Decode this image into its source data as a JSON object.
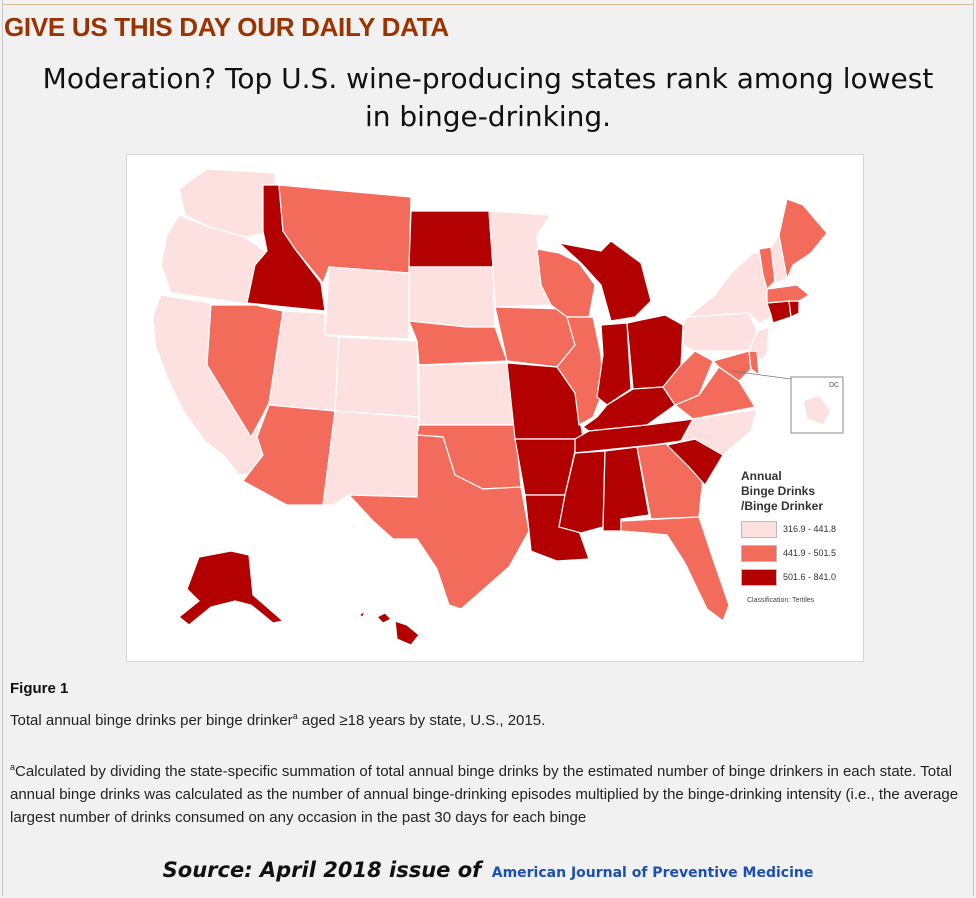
{
  "header": {
    "title": "GIVE US THIS DAY OUR DAILY DATA"
  },
  "headline": {
    "line1": "Moderation? Top U.S. wine-producing states rank among lowest",
    "line2": "in binge-drinking."
  },
  "map": {
    "legend": {
      "title_lines": [
        "Annual",
        "Binge Drinks",
        "/Binge Drinker"
      ],
      "classes": [
        {
          "label": "316.9 - 441.8",
          "color": "#fde1e1"
        },
        {
          "label": "441.9 - 501.5",
          "color": "#f26b5b"
        },
        {
          "label": "501.6 - 841.0",
          "color": "#b30000"
        }
      ],
      "note": "Classification: Tertiles"
    },
    "inset_label": "DC",
    "colors": {
      "low": "#fde1e1",
      "mid": "#f26b5b",
      "high": "#b30000",
      "border": "#ffffff"
    },
    "states": [
      {
        "name": "Washington",
        "tier": "low"
      },
      {
        "name": "Oregon",
        "tier": "low"
      },
      {
        "name": "California",
        "tier": "low"
      },
      {
        "name": "Idaho",
        "tier": "high"
      },
      {
        "name": "Nevada",
        "tier": "mid"
      },
      {
        "name": "Montana",
        "tier": "mid"
      },
      {
        "name": "Wyoming",
        "tier": "low"
      },
      {
        "name": "Utah",
        "tier": "low"
      },
      {
        "name": "Arizona",
        "tier": "mid"
      },
      {
        "name": "Colorado",
        "tier": "low"
      },
      {
        "name": "New Mexico",
        "tier": "low"
      },
      {
        "name": "North Dakota",
        "tier": "high"
      },
      {
        "name": "South Dakota",
        "tier": "low"
      },
      {
        "name": "Nebraska",
        "tier": "mid"
      },
      {
        "name": "Kansas",
        "tier": "low"
      },
      {
        "name": "Oklahoma",
        "tier": "mid"
      },
      {
        "name": "Texas",
        "tier": "mid"
      },
      {
        "name": "Minnesota",
        "tier": "low"
      },
      {
        "name": "Iowa",
        "tier": "mid"
      },
      {
        "name": "Missouri",
        "tier": "high"
      },
      {
        "name": "Arkansas",
        "tier": "high"
      },
      {
        "name": "Louisiana",
        "tier": "high"
      },
      {
        "name": "Wisconsin",
        "tier": "mid"
      },
      {
        "name": "Illinois",
        "tier": "mid"
      },
      {
        "name": "Michigan",
        "tier": "high"
      },
      {
        "name": "Indiana",
        "tier": "high"
      },
      {
        "name": "Ohio",
        "tier": "high"
      },
      {
        "name": "Kentucky",
        "tier": "high"
      },
      {
        "name": "Tennessee",
        "tier": "high"
      },
      {
        "name": "Mississippi",
        "tier": "high"
      },
      {
        "name": "Alabama",
        "tier": "high"
      },
      {
        "name": "Georgia",
        "tier": "mid"
      },
      {
        "name": "Florida",
        "tier": "mid"
      },
      {
        "name": "South Carolina",
        "tier": "high"
      },
      {
        "name": "North Carolina",
        "tier": "low"
      },
      {
        "name": "Virginia",
        "tier": "mid"
      },
      {
        "name": "West Virginia",
        "tier": "mid"
      },
      {
        "name": "Pennsylvania",
        "tier": "low"
      },
      {
        "name": "New York",
        "tier": "low"
      },
      {
        "name": "Maryland",
        "tier": "mid"
      },
      {
        "name": "Delaware",
        "tier": "mid"
      },
      {
        "name": "New Jersey",
        "tier": "low"
      },
      {
        "name": "Connecticut",
        "tier": "high"
      },
      {
        "name": "Rhode Island",
        "tier": "high"
      },
      {
        "name": "Massachusetts",
        "tier": "mid"
      },
      {
        "name": "Vermont",
        "tier": "mid"
      },
      {
        "name": "New Hampshire",
        "tier": "low"
      },
      {
        "name": "Maine",
        "tier": "mid"
      },
      {
        "name": "Alaska",
        "tier": "high"
      },
      {
        "name": "Hawaii",
        "tier": "high"
      },
      {
        "name": "District of Columbia",
        "tier": "low"
      }
    ]
  },
  "figure": {
    "label": "Figure 1",
    "caption_pre": "Total annual binge drinks per binge drinker",
    "caption_sup": "a",
    "caption_post": " aged ≥18 years by state, U.S., 2015.",
    "footnote_sup": "a",
    "footnote_text": "Calculated by dividing the state-specific summation of total annual binge drinks by the estimated number of binge drinkers in each state. Total annual binge drinks was calculated as the number of annual binge-drinking episodes multiplied by the binge-drinking intensity (i.e., the average largest number of drinks consumed on any occasion in the past 30 days for each binge"
  },
  "source": {
    "text": "Source: April 2018 issue of",
    "link": "American Journal of Preventive Medicine"
  }
}
